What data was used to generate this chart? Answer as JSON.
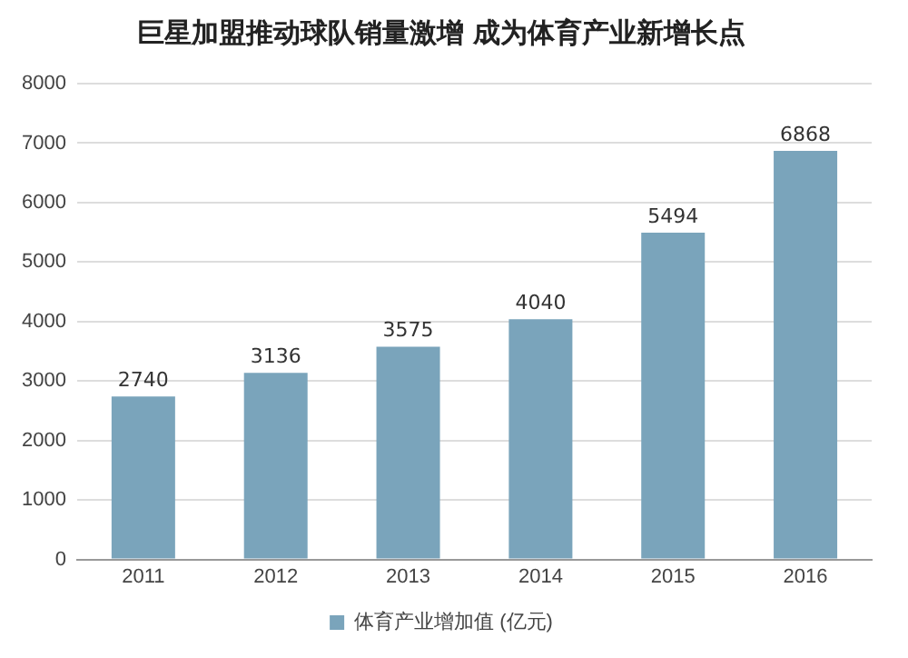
{
  "chart_data": {
    "type": "bar",
    "title": "巨星加盟推动球队销量激增 成为体育产业新增长点",
    "categories": [
      "2011",
      "2012",
      "2013",
      "2014",
      "2015",
      "2016"
    ],
    "series": [
      {
        "name": "体育产业增加值 (亿元)",
        "color": "#7aa4bb",
        "values": [
          2740,
          3136,
          3575,
          4040,
          5494,
          6868
        ]
      }
    ],
    "ylim": [
      0,
      8000
    ],
    "yticks": [
      0,
      1000,
      2000,
      3000,
      4000,
      5000,
      6000,
      7000,
      8000
    ],
    "grid": "y",
    "legend": "bottom",
    "data_labels": true
  }
}
